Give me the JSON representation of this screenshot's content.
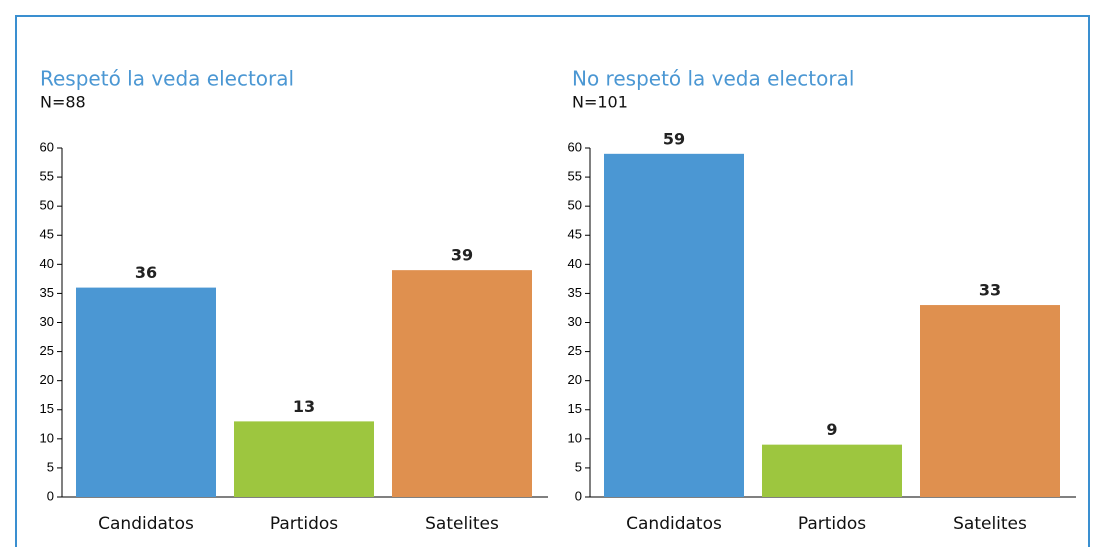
{
  "chart_data": [
    {
      "type": "bar",
      "title": "Respetó la veda electoral",
      "subtitle": "N=88",
      "categories": [
        "Candidatos",
        "Partidos",
        "Satelites"
      ],
      "values": [
        36,
        13,
        39
      ],
      "colors": [
        "#4b97d3",
        "#9dc63f",
        "#df904f"
      ],
      "ylim": [
        0,
        60
      ],
      "yticks": [
        0,
        5,
        10,
        15,
        20,
        25,
        30,
        35,
        40,
        45,
        50,
        55,
        60
      ]
    },
    {
      "type": "bar",
      "title": "No respetó la veda electoral",
      "subtitle": "N=101",
      "categories": [
        "Candidatos",
        "Partidos",
        "Satelites"
      ],
      "values": [
        59,
        9,
        33
      ],
      "colors": [
        "#4b97d3",
        "#9dc63f",
        "#df904f"
      ],
      "ylim": [
        0,
        60
      ],
      "yticks": [
        0,
        5,
        10,
        15,
        20,
        25,
        30,
        35,
        40,
        45,
        50,
        55,
        60
      ]
    }
  ]
}
